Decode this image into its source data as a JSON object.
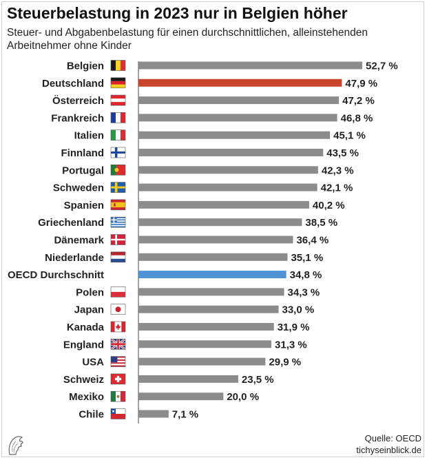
{
  "title": "Steuerbelastung in 2023 nur in Belgien höher",
  "subtitle": "Steuer- und Abgabenbelastung für einen durchschnittlichen, alleinstehenden Arbeitnehmer ohne Kinder",
  "source": "Quelle: OECD",
  "publisher": "tichyseinblick.de",
  "colors": {
    "default_bar": "#8c8c8c",
    "germany_bar": "#c8442a",
    "oecd_bar": "#4f93d4"
  },
  "chart_data": {
    "type": "bar",
    "orientation": "horizontal",
    "xlim": [
      0,
      60
    ],
    "categories": [
      "Belgien",
      "Deutschland",
      "Österreich",
      "Frankreich",
      "Italien",
      "Finnland",
      "Portugal",
      "Schweden",
      "Spanien",
      "Griechenland",
      "Dänemark",
      "Niederlande",
      "OECD Durchschnitt",
      "Polen",
      "Japan",
      "Kanada",
      "England",
      "USA",
      "Schweiz",
      "Mexiko",
      "Chile"
    ],
    "values": [
      52.7,
      47.9,
      47.2,
      46.8,
      45.1,
      43.5,
      42.3,
      42.1,
      40.2,
      38.5,
      36.4,
      35.1,
      34.8,
      34.3,
      33.0,
      31.9,
      31.3,
      29.9,
      23.5,
      20.0,
      7.1
    ],
    "value_labels": [
      "52,7 %",
      "47,9 %",
      "47,2 %",
      "46,8 %",
      "45,1 %",
      "43,5 %",
      "42,3 %",
      "42,1 %",
      "40,2 %",
      "38,5 %",
      "36,4 %",
      "35,1 %",
      "34,8 %",
      "34,3 %",
      "33,0 %",
      "31,9 %",
      "31,3 %",
      "29,9 %",
      "23,5 %",
      "20,0 %",
      "7,1 %"
    ],
    "flag_icons": [
      "flag-be-icon",
      "flag-de-icon",
      "flag-at-icon",
      "flag-fr-icon",
      "flag-it-icon",
      "flag-fi-icon",
      "flag-pt-icon",
      "flag-se-icon",
      "flag-es-icon",
      "flag-gr-icon",
      "flag-dk-icon",
      "flag-nl-icon",
      "",
      "flag-pl-icon",
      "flag-jp-icon",
      "flag-ca-icon",
      "flag-gb-icon",
      "flag-us-icon",
      "flag-ch-icon",
      "flag-mx-icon",
      "flag-cl-icon"
    ],
    "highlight": {
      "Deutschland": "#c8442a",
      "OECD Durchschnitt": "#4f93d4"
    },
    "xlabel": "",
    "ylabel": "",
    "grid": false
  }
}
